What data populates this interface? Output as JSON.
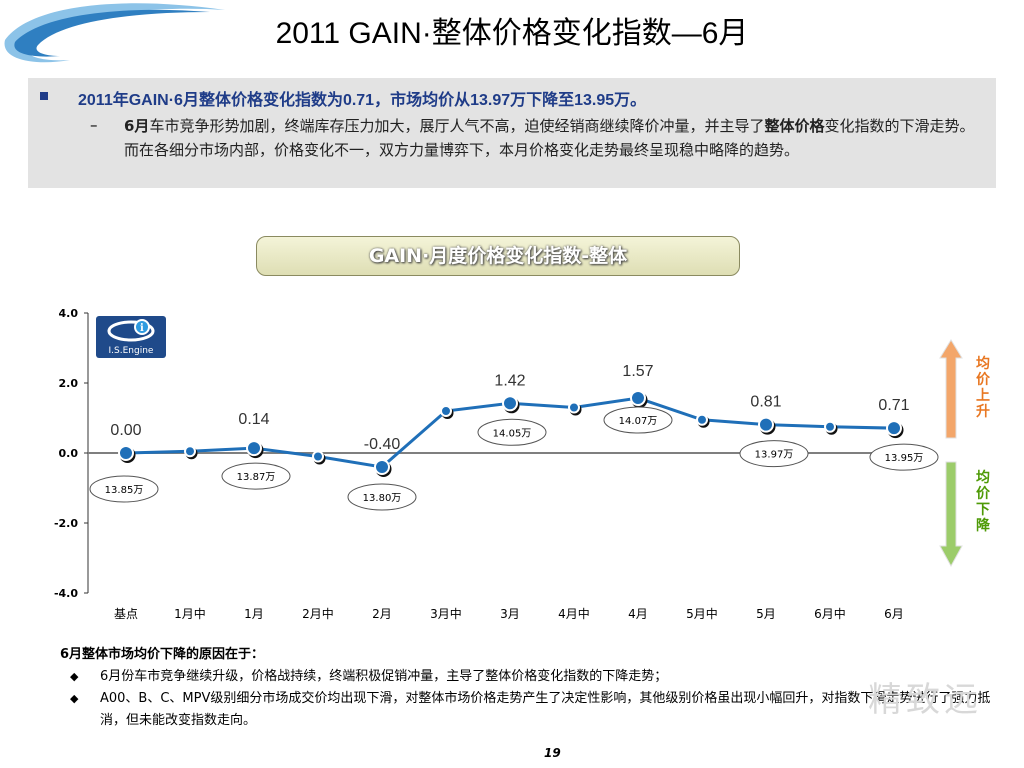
{
  "title": "2011 GAIN·整体价格变化指数—6月",
  "summary": {
    "main": "2011年GAIN·6月整体价格变化指数为0.71，市场均价从13.97万下降至13.95万。",
    "sub_prefix": "6月",
    "sub_text_1": "车市竞争形势加剧，终端库存压力加大，展厅人气不高，迫使经销商继续降价冲量，并主导了",
    "sub_bold": "整体价格",
    "sub_text_2": "变化指数的下滑走势。而在各细分市场内部，价格变化不一，双方力量博弈下，本月价格变化走势最终呈现稳中略降的趋势。"
  },
  "chart_title": "GAIN·月度价格变化指数-整体",
  "logo_text": "I.S.Engine",
  "legend": {
    "up": "均价上升",
    "down": "均价下降",
    "up_color": "#e87722",
    "down_color": "#4e9a06"
  },
  "chart_data": {
    "type": "line",
    "categories": [
      "基点",
      "1月中",
      "1月",
      "2月中",
      "2月",
      "3月中",
      "3月",
      "4月中",
      "4月",
      "5月中",
      "5月",
      "6月中",
      "6月"
    ],
    "values": [
      0.0,
      0.05,
      0.14,
      -0.1,
      -0.4,
      1.2,
      1.42,
      1.3,
      1.57,
      0.95,
      0.81,
      0.75,
      0.71
    ],
    "value_labels": [
      "0.00",
      "",
      "0.14",
      "",
      "-0.40",
      "",
      "1.42",
      "",
      "1.57",
      "",
      "0.81",
      "",
      "0.71"
    ],
    "price_labels": [
      "13.85万",
      "",
      "13.87万",
      "",
      "13.80万",
      "",
      "14.05万",
      "",
      "14.07万",
      "",
      "13.97万",
      "",
      "13.95万"
    ],
    "yticks": [
      "4.0",
      "2.0",
      "0.0",
      "-2.0",
      "-4.0"
    ],
    "ylim": [
      -4,
      4
    ],
    "line_color": "#1f6fb8",
    "zero_line_color": "#7f7f7f"
  },
  "reasons": {
    "title": "6月整体市场均价下降的原因在于：",
    "items": [
      "6月份车市竞争继续升级，价格战持续，终端积极促销冲量，主导了整体价格变化指数的下降走势；",
      "A00、B、C、MPV级别细分市场成交价均出现下滑，对整体市场价格走势产生了决定性影响，其他级别价格虽出现小幅回升，对指数下滑走势进行了强力抵消，但未能改变指数走向。"
    ]
  },
  "page_number": "19",
  "watermark": "精致远"
}
